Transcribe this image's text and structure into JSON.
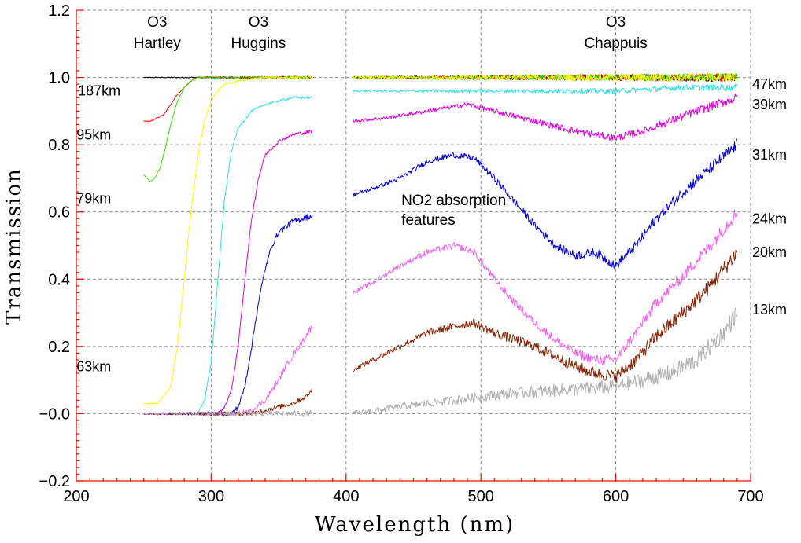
{
  "chart_data": {
    "type": "line",
    "xlabel": "Wavelength (nm)",
    "ylabel": "Transmission",
    "xlim": [
      200,
      700
    ],
    "ylim": [
      -0.2,
      1.2
    ],
    "x_ticks": [
      200,
      300,
      400,
      500,
      600,
      700
    ],
    "x_tick_labels": [
      "200",
      "300",
      "400",
      "500",
      "600",
      "700"
    ],
    "y_ticks": [
      -0.2,
      0.0,
      0.2,
      0.4,
      0.6,
      0.8,
      1.0,
      1.2
    ],
    "y_tick_labels": [
      "−0.2",
      "−0.0",
      "0.2",
      "0.4",
      "0.6",
      "0.8",
      "1.0",
      "1.2"
    ],
    "grid": true,
    "band_labels": [
      {
        "line1": "O3",
        "line2": "Hartley",
        "x": 260
      },
      {
        "line1": "O3",
        "line2": "Huggins",
        "x": 335
      },
      {
        "line1": "O3",
        "line2": "Chappuis",
        "x": 600
      }
    ],
    "annotation": {
      "line1": "NO2 absorption",
      "line2": "features",
      "x": 441,
      "y": 0.62
    },
    "uv_altitude_labels": [
      {
        "text": "187km",
        "x": 217,
        "y": 0.96
      },
      {
        "text": "95km",
        "x": 213,
        "y": 0.83
      },
      {
        "text": "79km",
        "x": 213,
        "y": 0.64
      },
      {
        "text": "63km",
        "x": 213,
        "y": 0.14
      }
    ],
    "vis_altitude_labels": [
      {
        "text": "47km",
        "y": 0.98
      },
      {
        "text": "39km",
        "y": 0.92
      },
      {
        "text": "31km",
        "y": 0.77
      },
      {
        "text": "24km",
        "y": 0.58
      },
      {
        "text": "20km",
        "y": 0.48
      },
      {
        "text": "13km",
        "y": 0.31
      }
    ],
    "series": [
      {
        "color": "#000000",
        "uv": {
          "x": [
            250,
            270,
            290,
            310,
            330,
            350,
            375
          ],
          "y": [
            1.0,
            1.0,
            1.0,
            1.0,
            1.0,
            1.0,
            1.0
          ]
        },
        "vis": {
          "x": [
            405,
            450,
            500,
            550,
            600,
            650,
            690
          ],
          "y": [
            1.0,
            1.0,
            1.0,
            1.0,
            1.0,
            1.0,
            1.0
          ]
        }
      },
      {
        "color": "#ff0000",
        "uv": {
          "x": [
            250,
            255,
            260,
            265,
            270,
            275,
            280,
            285,
            290,
            300,
            320,
            350,
            375
          ],
          "y": [
            0.87,
            0.87,
            0.88,
            0.89,
            0.92,
            0.95,
            0.97,
            0.99,
            1.0,
            1.0,
            1.0,
            1.0,
            1.0
          ]
        },
        "vis": {
          "x": [
            405,
            450,
            500,
            550,
            600,
            650,
            690
          ],
          "y": [
            1.0,
            1.0,
            1.0,
            1.0,
            1.0,
            1.0,
            1.0
          ]
        }
      },
      {
        "color": "#33dd00",
        "uv": {
          "x": [
            250,
            255,
            258,
            262,
            266,
            270,
            275,
            280,
            285,
            290,
            300,
            320,
            350,
            375
          ],
          "y": [
            0.71,
            0.69,
            0.7,
            0.73,
            0.79,
            0.86,
            0.93,
            0.97,
            0.99,
            1.0,
            1.0,
            1.0,
            1.0,
            1.0
          ]
        },
        "vis": {
          "x": [
            405,
            450,
            500,
            550,
            600,
            650,
            690
          ],
          "y": [
            1.0,
            1.0,
            1.0,
            1.0,
            1.0,
            1.0,
            1.0
          ]
        }
      },
      {
        "color": "#ffff00",
        "uv": {
          "x": [
            250,
            260,
            270,
            275,
            280,
            285,
            290,
            295,
            300,
            305,
            310,
            320,
            340,
            360,
            375
          ],
          "y": [
            0.03,
            0.03,
            0.08,
            0.2,
            0.4,
            0.6,
            0.76,
            0.87,
            0.93,
            0.96,
            0.98,
            0.99,
            1.0,
            1.0,
            1.0
          ]
        },
        "vis": {
          "x": [
            405,
            450,
            500,
            550,
            600,
            650,
            690
          ],
          "y": [
            1.0,
            1.0,
            1.0,
            1.0,
            1.0,
            1.0,
            1.0
          ]
        }
      },
      {
        "color": "#33e0e0",
        "uv": {
          "x": [
            250,
            290,
            295,
            300,
            305,
            310,
            315,
            320,
            330,
            340,
            350,
            360,
            375
          ],
          "y": [
            0.0,
            0.0,
            0.04,
            0.15,
            0.4,
            0.64,
            0.78,
            0.85,
            0.9,
            0.92,
            0.93,
            0.94,
            0.94
          ]
        },
        "vis": {
          "x": [
            405,
            450,
            500,
            550,
            600,
            650,
            690
          ],
          "y": [
            0.96,
            0.96,
            0.96,
            0.96,
            0.96,
            0.97,
            0.97
          ]
        }
      },
      {
        "color": "#dd00dd",
        "uv": {
          "x": [
            250,
            305,
            310,
            315,
            320,
            325,
            330,
            335,
            340,
            350,
            360,
            375
          ],
          "y": [
            0.0,
            0.0,
            0.02,
            0.07,
            0.2,
            0.4,
            0.58,
            0.7,
            0.77,
            0.81,
            0.83,
            0.84
          ]
        },
        "vis": {
          "x": [
            405,
            430,
            460,
            490,
            510,
            530,
            550,
            570,
            585,
            600,
            620,
            640,
            660,
            690
          ],
          "y": [
            0.87,
            0.88,
            0.9,
            0.92,
            0.9,
            0.88,
            0.86,
            0.84,
            0.83,
            0.82,
            0.84,
            0.87,
            0.9,
            0.94
          ]
        }
      },
      {
        "color": "#0000cc",
        "uv": {
          "x": [
            250,
            315,
            320,
            325,
            330,
            335,
            340,
            345,
            350,
            360,
            375
          ],
          "y": [
            0.0,
            0.0,
            0.02,
            0.08,
            0.2,
            0.33,
            0.43,
            0.5,
            0.54,
            0.57,
            0.59
          ]
        },
        "vis": {
          "x": [
            405,
            420,
            440,
            460,
            480,
            495,
            510,
            525,
            540,
            555,
            570,
            585,
            600,
            615,
            630,
            650,
            670,
            690
          ],
          "y": [
            0.65,
            0.67,
            0.7,
            0.75,
            0.77,
            0.76,
            0.7,
            0.63,
            0.56,
            0.5,
            0.47,
            0.48,
            0.44,
            0.5,
            0.58,
            0.66,
            0.73,
            0.8
          ]
        }
      },
      {
        "color": "#ee66ee",
        "uv": {
          "x": [
            250,
            320,
            330,
            340,
            345,
            350,
            355,
            360,
            365,
            370,
            375
          ],
          "y": [
            0.0,
            0.0,
            0.01,
            0.04,
            0.07,
            0.1,
            0.14,
            0.17,
            0.2,
            0.23,
            0.26
          ]
        },
        "vis": {
          "x": [
            405,
            420,
            440,
            460,
            480,
            495,
            510,
            525,
            540,
            555,
            570,
            585,
            600,
            615,
            630,
            650,
            670,
            690
          ],
          "y": [
            0.36,
            0.39,
            0.44,
            0.48,
            0.5,
            0.48,
            0.4,
            0.33,
            0.27,
            0.22,
            0.18,
            0.16,
            0.16,
            0.24,
            0.33,
            0.41,
            0.5,
            0.6
          ]
        }
      },
      {
        "color": "#882200",
        "uv": {
          "x": [
            250,
            320,
            330,
            340,
            350,
            360,
            370,
            375
          ],
          "y": [
            0.0,
            0.0,
            0.0,
            0.01,
            0.02,
            0.03,
            0.05,
            0.07
          ]
        },
        "vis": {
          "x": [
            405,
            420,
            440,
            460,
            480,
            495,
            510,
            525,
            540,
            555,
            570,
            585,
            600,
            615,
            630,
            650,
            670,
            690
          ],
          "y": [
            0.13,
            0.16,
            0.2,
            0.24,
            0.26,
            0.27,
            0.24,
            0.22,
            0.2,
            0.17,
            0.14,
            0.12,
            0.11,
            0.16,
            0.23,
            0.3,
            0.38,
            0.48
          ]
        }
      },
      {
        "color": "#b0b0b0",
        "uv": {
          "x": [
            250,
            300,
            330,
            375
          ],
          "y": [
            0.0,
            0.0,
            0.0,
            0.0
          ]
        },
        "vis": {
          "x": [
            405,
            440,
            480,
            520,
            560,
            600,
            620,
            640,
            660,
            680,
            690
          ],
          "y": [
            0.0,
            0.02,
            0.04,
            0.06,
            0.07,
            0.08,
            0.1,
            0.12,
            0.16,
            0.24,
            0.3
          ]
        }
      }
    ]
  }
}
